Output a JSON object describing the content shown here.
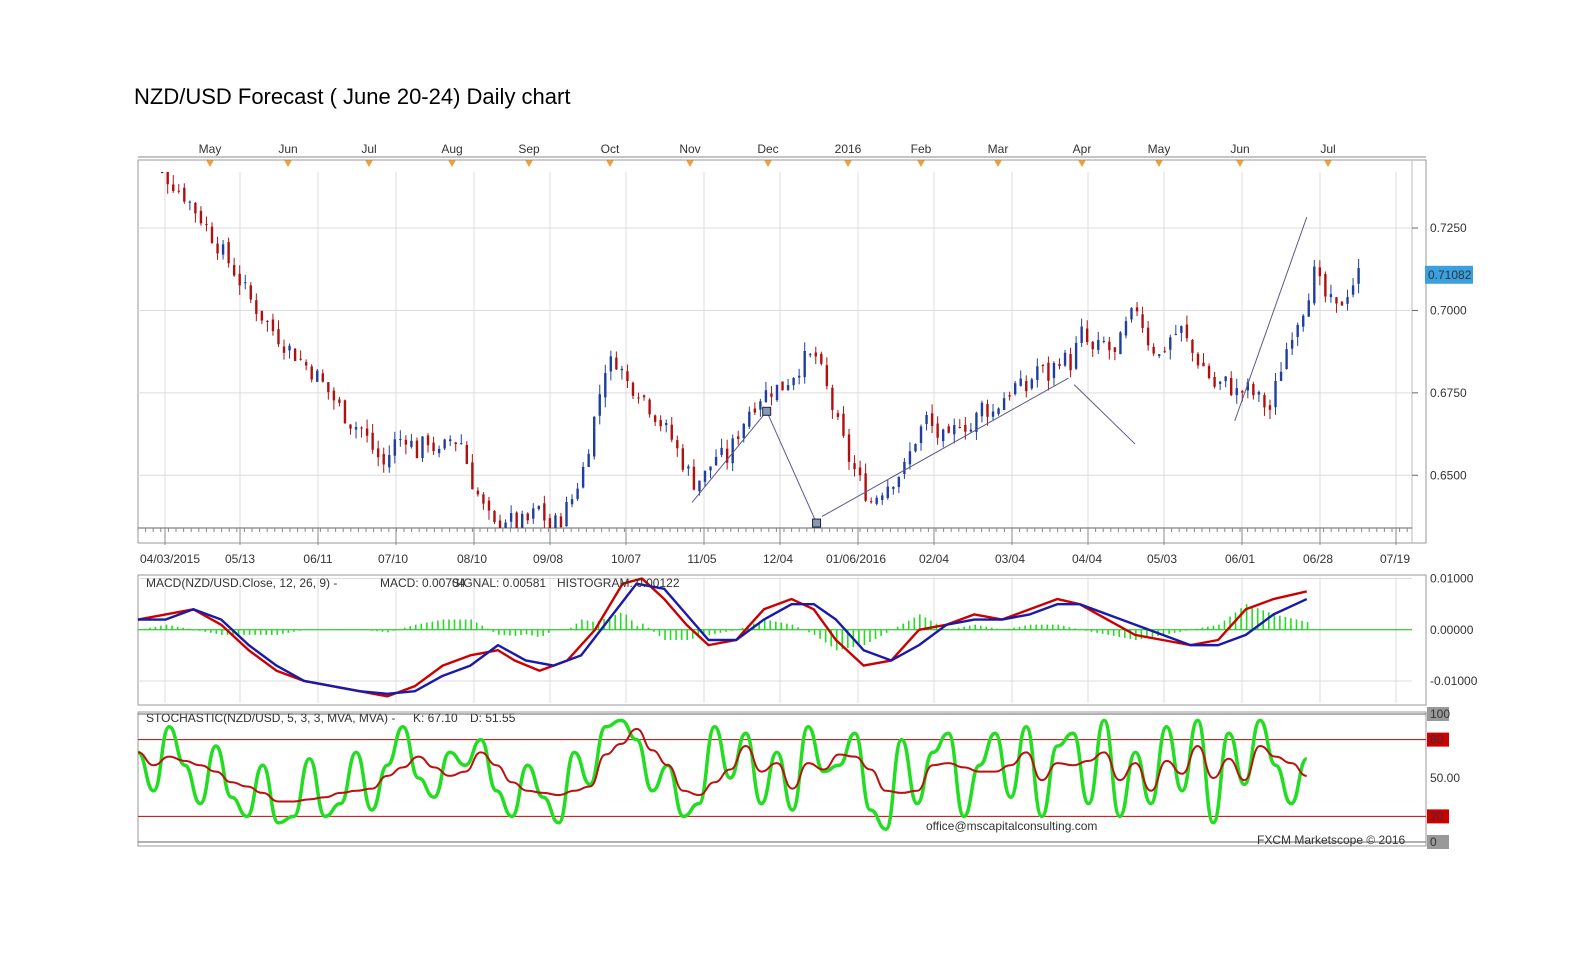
{
  "title": "NZD/USD Forecast ( June 20-24) Daily chart",
  "top_months": [
    "May",
    "Jun",
    "Jul",
    "Aug",
    "Sep",
    "Oct",
    "Nov",
    "Dec",
    "2016",
    "Feb",
    "Mar",
    "Apr",
    "May",
    "Jun",
    "Jul"
  ],
  "chart_data": [
    {
      "type": "candlestick",
      "name": "price",
      "y_ticks": [
        "0.7250",
        "0.7000",
        "0.6750",
        "0.6500"
      ],
      "ylim": [
        0.634,
        0.742
      ],
      "last_price_label": "0.71082",
      "x_tick_labels": [
        "04/03/2015",
        "05/13",
        "06/11",
        "07/10",
        "08/10",
        "09/08",
        "10/07",
        "11/05",
        "12/04",
        "01/06/2016",
        "02/04",
        "03/04",
        "04/04",
        "05/03",
        "06/01",
        "06/28",
        "07/19"
      ],
      "close_path": [
        [
          0,
          0.747
        ],
        [
          8,
          0.742
        ],
        [
          16,
          0.735
        ],
        [
          22,
          0.728
        ],
        [
          28,
          0.72
        ],
        [
          34,
          0.712
        ],
        [
          40,
          0.703
        ],
        [
          46,
          0.696
        ],
        [
          52,
          0.69
        ],
        [
          58,
          0.685
        ],
        [
          64,
          0.68
        ],
        [
          70,
          0.673
        ],
        [
          76,
          0.666
        ],
        [
          80,
          0.664
        ],
        [
          84,
          0.658
        ],
        [
          88,
          0.653
        ],
        [
          92,
          0.66
        ],
        [
          96,
          0.662
        ],
        [
          100,
          0.657
        ],
        [
          104,
          0.661
        ],
        [
          108,
          0.656
        ],
        [
          112,
          0.661
        ],
        [
          116,
          0.66
        ],
        [
          120,
          0.648
        ],
        [
          124,
          0.64
        ],
        [
          128,
          0.634
        ],
        [
          132,
          0.637
        ],
        [
          136,
          0.635
        ],
        [
          140,
          0.636
        ],
        [
          144,
          0.64
        ],
        [
          148,
          0.634
        ],
        [
          152,
          0.637
        ],
        [
          156,
          0.643
        ],
        [
          160,
          0.652
        ],
        [
          164,
          0.667
        ],
        [
          168,
          0.683
        ],
        [
          172,
          0.685
        ],
        [
          176,
          0.678
        ],
        [
          180,
          0.676
        ],
        [
          184,
          0.671
        ],
        [
          188,
          0.666
        ],
        [
          192,
          0.661
        ],
        [
          196,
          0.654
        ],
        [
          200,
          0.648
        ],
        [
          204,
          0.65
        ],
        [
          208,
          0.656
        ],
        [
          212,
          0.655
        ],
        [
          216,
          0.663
        ],
        [
          220,
          0.67
        ],
        [
          224,
          0.674
        ],
        [
          228,
          0.676
        ],
        [
          232,
          0.677
        ],
        [
          236,
          0.681
        ],
        [
          240,
          0.685
        ],
        [
          244,
          0.686
        ],
        [
          248,
          0.676
        ],
        [
          252,
          0.665
        ],
        [
          256,
          0.655
        ],
        [
          260,
          0.648
        ],
        [
          264,
          0.642
        ],
        [
          268,
          0.646
        ],
        [
          272,
          0.649
        ],
        [
          276,
          0.652
        ],
        [
          280,
          0.661
        ],
        [
          284,
          0.667
        ],
        [
          288,
          0.662
        ],
        [
          292,
          0.66
        ],
        [
          296,
          0.667
        ],
        [
          300,
          0.664
        ],
        [
          304,
          0.671
        ],
        [
          308,
          0.669
        ],
        [
          312,
          0.674
        ],
        [
          316,
          0.677
        ],
        [
          320,
          0.676
        ],
        [
          324,
          0.683
        ],
        [
          328,
          0.68
        ],
        [
          332,
          0.686
        ],
        [
          336,
          0.684
        ],
        [
          340,
          0.693
        ],
        [
          344,
          0.687
        ],
        [
          348,
          0.69
        ],
        [
          352,
          0.686
        ],
        [
          356,
          0.695
        ],
        [
          360,
          0.701
        ],
        [
          364,
          0.691
        ],
        [
          368,
          0.686
        ],
        [
          372,
          0.692
        ],
        [
          376,
          0.694
        ],
        [
          380,
          0.687
        ],
        [
          384,
          0.683
        ],
        [
          388,
          0.677
        ],
        [
          392,
          0.678
        ],
        [
          396,
          0.675
        ],
        [
          400,
          0.676
        ],
        [
          404,
          0.673
        ],
        [
          408,
          0.67
        ],
        [
          412,
          0.683
        ],
        [
          416,
          0.694
        ],
        [
          420,
          0.701
        ],
        [
          424,
          0.711
        ],
        [
          428,
          0.704
        ],
        [
          432,
          0.7
        ],
        [
          436,
          0.706
        ],
        [
          440,
          0.711
        ]
      ],
      "line_points": [
        [
          [
            200,
            0.6417
          ],
          [
            227,
            0.6694
          ]
        ],
        [
          [
            227,
            0.6694
          ],
          [
            245,
            0.6355
          ]
        ],
        [
          [
            247,
            0.6375
          ],
          [
            336,
            0.6795
          ]
        ],
        [
          [
            338,
            0.6775
          ],
          [
            360,
            0.6595
          ]
        ],
        [
          [
            396,
            0.6665
          ],
          [
            422,
            0.7283
          ]
        ]
      ],
      "x_count": 460
    },
    {
      "type": "line",
      "name": "MACD",
      "label": "MACD(NZD/USD.Close, 12, 26, 9) -",
      "macd_label": "MACD: 0.00704",
      "signal_label": "SIGNAL: 0.00581",
      "histogram_label": "HISTOGRAM: 0.00122",
      "y_ticks": [
        "0.01000",
        "0.00000",
        "-0.01000"
      ],
      "ylim": [
        -0.0145,
        0.0105
      ],
      "series": [
        {
          "name": "MACD",
          "color": "#cc0000",
          "values": [
            [
              0,
              0.002
            ],
            [
              10,
              0.003
            ],
            [
              20,
              0.004
            ],
            [
              30,
              0.001
            ],
            [
              40,
              -0.004
            ],
            [
              50,
              -0.008
            ],
            [
              60,
              -0.01
            ],
            [
              70,
              -0.011
            ],
            [
              80,
              -0.012
            ],
            [
              90,
              -0.013
            ],
            [
              100,
              -0.011
            ],
            [
              110,
              -0.007
            ],
            [
              120,
              -0.005
            ],
            [
              130,
              -0.004
            ],
            [
              136,
              -0.006
            ],
            [
              145,
              -0.008
            ],
            [
              155,
              -0.006
            ],
            [
              165,
              0.0
            ],
            [
              175,
              0.009
            ],
            [
              182,
              0.01
            ],
            [
              190,
              0.006
            ],
            [
              198,
              0.001
            ],
            [
              206,
              -0.003
            ],
            [
              216,
              -0.002
            ],
            [
              226,
              0.004
            ],
            [
              236,
              0.006
            ],
            [
              244,
              0.004
            ],
            [
              252,
              -0.002
            ],
            [
              262,
              -0.007
            ],
            [
              272,
              -0.006
            ],
            [
              282,
              0.0
            ],
            [
              292,
              0.001
            ],
            [
              302,
              0.003
            ],
            [
              312,
              0.002
            ],
            [
              322,
              0.004
            ],
            [
              332,
              0.006
            ],
            [
              340,
              0.005
            ],
            [
              350,
              0.002
            ],
            [
              360,
              -0.001
            ],
            [
              370,
              -0.002
            ],
            [
              380,
              -0.003
            ],
            [
              390,
              -0.002
            ],
            [
              400,
              0.004
            ],
            [
              410,
              0.006
            ],
            [
              418,
              0.007
            ],
            [
              422,
              0.0075
            ]
          ]
        },
        {
          "name": "SIGNAL",
          "color": "#1a1aaa",
          "values": [
            [
              0,
              0.002
            ],
            [
              10,
              0.002
            ],
            [
              20,
              0.004
            ],
            [
              30,
              0.002
            ],
            [
              40,
              -0.003
            ],
            [
              50,
              -0.007
            ],
            [
              60,
              -0.01
            ],
            [
              70,
              -0.011
            ],
            [
              80,
              -0.012
            ],
            [
              90,
              -0.0125
            ],
            [
              100,
              -0.012
            ],
            [
              110,
              -0.009
            ],
            [
              120,
              -0.007
            ],
            [
              130,
              -0.003
            ],
            [
              140,
              -0.006
            ],
            [
              150,
              -0.007
            ],
            [
              160,
              -0.005
            ],
            [
              170,
              0.002
            ],
            [
              180,
              0.009
            ],
            [
              190,
              0.008
            ],
            [
              198,
              0.003
            ],
            [
              206,
              -0.002
            ],
            [
              216,
              -0.002
            ],
            [
              226,
              0.002
            ],
            [
              236,
              0.005
            ],
            [
              244,
              0.005
            ],
            [
              252,
              0.002
            ],
            [
              262,
              -0.004
            ],
            [
              272,
              -0.006
            ],
            [
              282,
              -0.003
            ],
            [
              292,
              0.001
            ],
            [
              302,
              0.002
            ],
            [
              312,
              0.002
            ],
            [
              322,
              0.003
            ],
            [
              332,
              0.005
            ],
            [
              340,
              0.005
            ],
            [
              350,
              0.003
            ],
            [
              360,
              0.001
            ],
            [
              370,
              -0.001
            ],
            [
              380,
              -0.003
            ],
            [
              390,
              -0.003
            ],
            [
              400,
              -0.001
            ],
            [
              410,
              0.003
            ],
            [
              418,
              0.005
            ],
            [
              422,
              0.006
            ]
          ]
        }
      ]
    },
    {
      "type": "line",
      "name": "STOCHASTIC",
      "label": "STOCHASTIC(NZD/USD, 5, 3, 3, MVA, MVA) -",
      "k_label": "K: 67.10",
      "d_label": "D: 51.55",
      "y_ticks": [
        "100",
        "80",
        "50.00",
        "20",
        "0"
      ],
      "ylim": [
        0,
        100
      ],
      "k_values": [
        70,
        40,
        90,
        60,
        30,
        75,
        35,
        20,
        60,
        15,
        20,
        65,
        20,
        30,
        70,
        25,
        60,
        90,
        50,
        35,
        70,
        60,
        80,
        40,
        20,
        60,
        35,
        15,
        70,
        45,
        90,
        95,
        80,
        40,
        60,
        20,
        30,
        90,
        50,
        85,
        30,
        70,
        25,
        90,
        55,
        60,
        85,
        25,
        10,
        80,
        30,
        70,
        85,
        20,
        60,
        85,
        35,
        90,
        20,
        75,
        85,
        30,
        95,
        20,
        70,
        30,
        90,
        40,
        95,
        15,
        85,
        45,
        95,
        60,
        30,
        65
      ]
    }
  ],
  "watermark_email": "office@mscapitalconsulting.com",
  "footer": "FXCM Marketscope © 2016"
}
